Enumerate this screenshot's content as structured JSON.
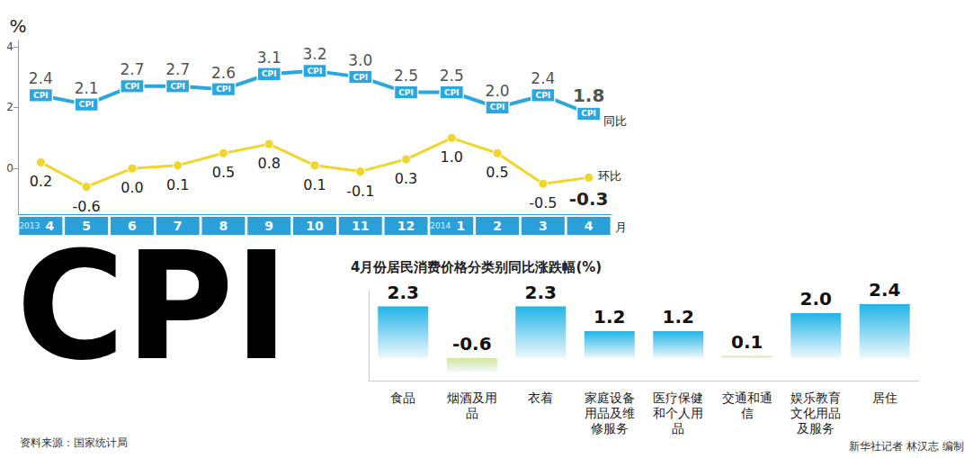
{
  "title": "CPI",
  "source": "资料来源：国家统计局",
  "credit": "新华社记者 林汉志 编制",
  "chart_data": [
    {
      "type": "line",
      "ylabel": "%",
      "xlabel": "月",
      "categories": [
        "2013 4",
        "5",
        "6",
        "7",
        "8",
        "9",
        "10",
        "11",
        "12",
        "2014 1",
        "2",
        "3",
        "4"
      ],
      "ylim": [
        -1.5,
        4.2
      ],
      "yticks": [
        0,
        2,
        4
      ],
      "grid": false,
      "data_labels": true,
      "series": [
        {
          "name": "同比",
          "color": "#2aa7df",
          "marker": "rect",
          "point_text": "CPI",
          "values": [
            2.4,
            2.1,
            2.7,
            2.7,
            2.6,
            3.1,
            3.2,
            3.0,
            2.5,
            2.5,
            2.0,
            2.4,
            1.8
          ],
          "value_labels": [
            "2.4",
            "2.1",
            "2.7",
            "2.7",
            "2.6",
            "3.1",
            "3.2",
            "3.0",
            "2.5",
            "2.5",
            "2.0",
            "2.4",
            "1.8"
          ]
        },
        {
          "name": "环比",
          "color": "#f0d52a",
          "marker": "circle",
          "values": [
            0.2,
            -0.6,
            0.0,
            0.1,
            0.5,
            0.8,
            0.1,
            -0.1,
            0.3,
            1.0,
            0.5,
            -0.5,
            -0.3
          ],
          "value_labels": [
            "0.2",
            "-0.6",
            "0.0",
            "0.1",
            "0.5",
            "0.8",
            "0.1",
            "-0.1",
            "0.3",
            "1.0",
            "0.5",
            "-0.5",
            "-0.3"
          ]
        }
      ]
    },
    {
      "type": "bar",
      "title": "4月份居民消费价格分类别同比涨跌幅(%)",
      "categories": [
        "食品",
        "烟酒及用品",
        "衣着",
        "家庭设备用品及维修服务",
        "医疗保健和个人用品",
        "交通和通信",
        "娱乐教育文化用品及服务",
        "居住"
      ],
      "values": [
        2.3,
        -0.6,
        2.3,
        1.2,
        1.2,
        0.1,
        2.0,
        2.4
      ],
      "value_labels": [
        "2.3",
        "-0.6",
        "2.3",
        "1.2",
        "1.2",
        "0.1",
        "2.0",
        "2.4"
      ],
      "colors": [
        "#22b4e6",
        "#d4e69c",
        "#22b4e6",
        "#22b4e6",
        "#22b4e6",
        "#d4e69c",
        "#22b4e6",
        "#22b4e6"
      ],
      "ylim": [
        -1,
        3
      ],
      "grid": false,
      "tick_labels": false,
      "data_labels": true
    }
  ]
}
